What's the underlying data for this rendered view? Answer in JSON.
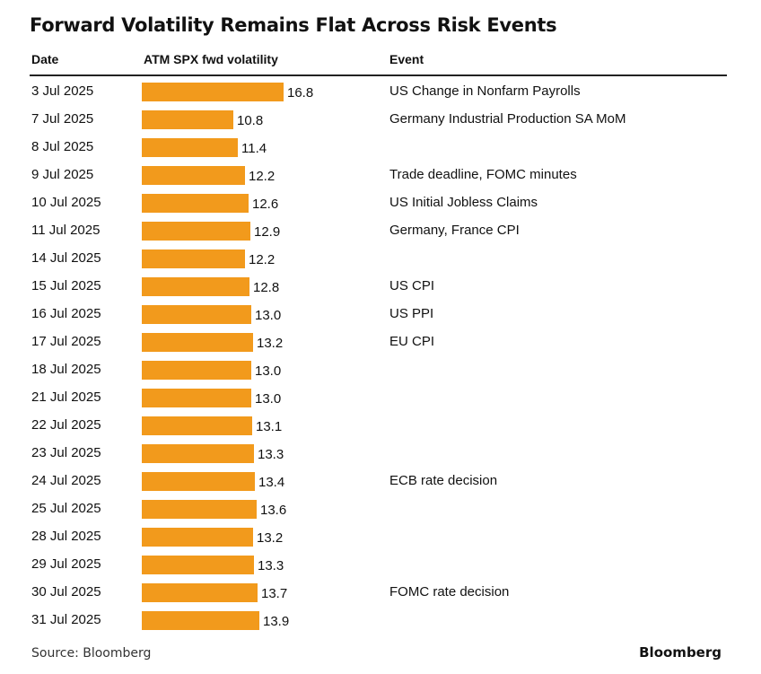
{
  "chart_data": {
    "type": "bar",
    "orientation": "horizontal",
    "title": "Forward Volatility Remains Flat Across Risk Events",
    "columns": {
      "date": "Date",
      "value": "ATM SPX fwd volatility",
      "event": "Event"
    },
    "rows": [
      {
        "date": "3 Jul 2025",
        "value": 16.8,
        "label": "16.8",
        "event": "US Change in Nonfarm Payrolls"
      },
      {
        "date": "7 Jul 2025",
        "value": 10.8,
        "label": "10.8",
        "event": "Germany Industrial Production SA MoM"
      },
      {
        "date": "8 Jul 2025",
        "value": 11.4,
        "label": "11.4",
        "event": ""
      },
      {
        "date": "9 Jul 2025",
        "value": 12.2,
        "label": "12.2",
        "event": "Trade deadline, FOMC minutes"
      },
      {
        "date": "10 Jul 2025",
        "value": 12.6,
        "label": "12.6",
        "event": "US Initial Jobless Claims"
      },
      {
        "date": "11 Jul 2025",
        "value": 12.9,
        "label": "12.9",
        "event": "Germany, France CPI"
      },
      {
        "date": "14 Jul 2025",
        "value": 12.2,
        "label": "12.2",
        "event": ""
      },
      {
        "date": "15 Jul 2025",
        "value": 12.8,
        "label": "12.8",
        "event": "US CPI"
      },
      {
        "date": "16 Jul 2025",
        "value": 13.0,
        "label": "13.0",
        "event": "US PPI"
      },
      {
        "date": "17 Jul 2025",
        "value": 13.2,
        "label": "13.2",
        "event": "EU CPI"
      },
      {
        "date": "18 Jul 2025",
        "value": 13.0,
        "label": "13.0",
        "event": ""
      },
      {
        "date": "21 Jul 2025",
        "value": 13.0,
        "label": "13.0",
        "event": ""
      },
      {
        "date": "22 Jul 2025",
        "value": 13.1,
        "label": "13.1",
        "event": ""
      },
      {
        "date": "23 Jul 2025",
        "value": 13.3,
        "label": "13.3",
        "event": ""
      },
      {
        "date": "24 Jul 2025",
        "value": 13.4,
        "label": "13.4",
        "event": "ECB rate decision"
      },
      {
        "date": "25 Jul 2025",
        "value": 13.6,
        "label": "13.6",
        "event": ""
      },
      {
        "date": "28 Jul 2025",
        "value": 13.2,
        "label": "13.2",
        "event": ""
      },
      {
        "date": "29 Jul 2025",
        "value": 13.3,
        "label": "13.3",
        "event": ""
      },
      {
        "date": "30 Jul 2025",
        "value": 13.7,
        "label": "13.7",
        "event": "FOMC rate decision"
      },
      {
        "date": "31 Jul 2025",
        "value": 13.9,
        "label": "13.9",
        "event": ""
      }
    ],
    "xlim": [
      0,
      16.8
    ],
    "bar_color": "#f29a1c"
  },
  "footer": {
    "source": "Source: Bloomberg",
    "brand": "Bloomberg"
  }
}
